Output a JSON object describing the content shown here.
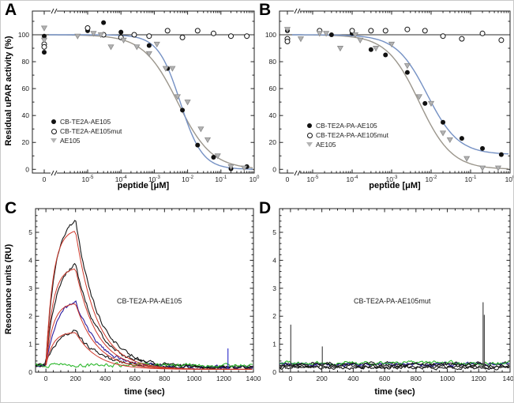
{
  "figure": {
    "background": "#ffffff",
    "border_color": "#c9c9c9",
    "axis_color": "#222222"
  },
  "chart_data": [
    {
      "id": "A",
      "type": "scatter",
      "panel_kind": "dose-response",
      "xlabel": "peptide [μM]",
      "ylabel": "Residual uPAR activity (%)",
      "x_scale": "log10 with zero point and axis break",
      "x_ticks": [
        "0",
        "10^-5",
        "10^-4",
        "10^-3",
        "10^-2",
        "10^-1",
        "10^0"
      ],
      "y_ticks": [
        0,
        20,
        40,
        60,
        80,
        100
      ],
      "ylim": [
        -3,
        118
      ],
      "grid": false,
      "legend_position": "lower-left-inside",
      "legend": [
        {
          "label": "CB-TE2A-AE105",
          "marker": "filled-circle",
          "color": "#111111"
        },
        {
          "label": "CB-TE2A-AE105mut",
          "marker": "open-circle",
          "color": "#111111"
        },
        {
          "label": "AE105",
          "marker": "filled-triangle-down",
          "color": "#b3b3b3"
        }
      ],
      "series": [
        {
          "name": "CB-TE2A-AE105",
          "marker": "filled-circle",
          "color": "#111111",
          "points": [
            [
              0,
              99
            ],
            [
              0,
              87
            ],
            [
              1e-05,
              103
            ],
            [
              3e-05,
              109
            ],
            [
              0.0001,
              102
            ],
            [
              0.0007,
              92
            ],
            [
              0.0025,
              75
            ],
            [
              0.007,
              44
            ],
            [
              0.02,
              18
            ],
            [
              0.06,
              9
            ],
            [
              0.2,
              0.5
            ],
            [
              0.6,
              2
            ]
          ]
        },
        {
          "name": "CB-TE2A-AE105mut",
          "marker": "open-circle",
          "color": "#111111",
          "points": [
            [
              0,
              93
            ],
            [
              0,
              91
            ],
            [
              1e-05,
              105
            ],
            [
              3e-05,
              100
            ],
            [
              0.0001,
              98
            ],
            [
              0.00025,
              100
            ],
            [
              0.0007,
              99
            ],
            [
              0.0025,
              103
            ],
            [
              0.007,
              98
            ],
            [
              0.02,
              103
            ],
            [
              0.06,
              101
            ],
            [
              0.2,
              99
            ],
            [
              0.6,
              99
            ]
          ]
        },
        {
          "name": "AE105",
          "marker": "filled-triangle-down",
          "color": "#b3b3b3",
          "points": [
            [
              0,
              105
            ],
            [
              0,
              96
            ],
            [
              5e-06,
              99
            ],
            [
              1.5e-05,
              101
            ],
            [
              2.5e-05,
              100
            ],
            [
              5e-05,
              91
            ],
            [
              0.00012,
              96
            ],
            [
              0.0003,
              91
            ],
            [
              0.0007,
              86
            ],
            [
              0.0012,
              93
            ],
            [
              0.0022,
              75
            ],
            [
              0.0035,
              75
            ],
            [
              0.005,
              54
            ],
            [
              0.01,
              50
            ],
            [
              0.025,
              30
            ],
            [
              0.04,
              22
            ],
            [
              0.08,
              10
            ],
            [
              0.2,
              2
            ],
            [
              0.5,
              1
            ]
          ]
        }
      ],
      "curves": [
        {
          "name": "mut-flat-fit",
          "model": "flat",
          "level": 100,
          "color": "#2b2b2b"
        },
        {
          "name": "AE105-hill-fit",
          "model": "hill",
          "top": 100,
          "bottom": 0,
          "ic50": 0.005,
          "hill": 0.85,
          "color": "#9b968c"
        },
        {
          "name": "CB-TE2A-AE105-hill-fit",
          "model": "hill",
          "top": 100,
          "bottom": 0,
          "ic50": 0.006,
          "hill": 1.3,
          "color": "#7591c4"
        }
      ]
    },
    {
      "id": "B",
      "type": "scatter",
      "panel_kind": "dose-response",
      "xlabel": "peptide [μM]",
      "ylabel": "",
      "x_scale": "log10 with zero point and axis break",
      "x_ticks": [
        "0",
        "10^-5",
        "10^-4",
        "10^-3",
        "10^-2",
        "10^-1",
        "10^0"
      ],
      "y_ticks": [
        0,
        20,
        40,
        60,
        80,
        100
      ],
      "ylim": [
        -3,
        118
      ],
      "grid": false,
      "legend_position": "lower-left-inside",
      "legend": [
        {
          "label": "CB-TE2A-PA-AE105",
          "marker": "filled-circle",
          "color": "#111111"
        },
        {
          "label": "CB-TE2A-PA-AE105mut",
          "marker": "open-circle",
          "color": "#111111"
        },
        {
          "label": "AE105",
          "marker": "filled-triangle-down",
          "color": "#b3b3b3"
        }
      ],
      "series": [
        {
          "name": "CB-TE2A-PA-AE105",
          "marker": "filled-circle",
          "color": "#111111",
          "points": [
            [
              0,
              103
            ],
            [
              0,
              97
            ],
            [
              3e-05,
              100
            ],
            [
              0.0001,
              101
            ],
            [
              0.0003,
              89
            ],
            [
              0.0007,
              85
            ],
            [
              0.0025,
              72
            ],
            [
              0.007,
              49
            ],
            [
              0.02,
              35
            ],
            [
              0.06,
              23
            ],
            [
              0.2,
              15.5
            ],
            [
              0.6,
              11
            ]
          ]
        },
        {
          "name": "CB-TE2A-PA-AE105mut",
          "marker": "open-circle",
          "color": "#111111",
          "points": [
            [
              0,
              97
            ],
            [
              0,
              95
            ],
            [
              1.5e-05,
              103
            ],
            [
              0.0001,
              103
            ],
            [
              0.0003,
              103
            ],
            [
              0.0007,
              103
            ],
            [
              0.0025,
              104
            ],
            [
              0.007,
              103
            ],
            [
              0.02,
              99
            ],
            [
              0.06,
              97
            ],
            [
              0.2,
              101
            ],
            [
              0.6,
              96
            ]
          ]
        },
        {
          "name": "AE105",
          "marker": "filled-triangle-down",
          "color": "#b3b3b3",
          "points": [
            [
              0,
              104
            ],
            [
              5e-06,
              97
            ],
            [
              1.5e-05,
              101
            ],
            [
              2.2e-05,
              101
            ],
            [
              5e-05,
              90
            ],
            [
              0.00012,
              100
            ],
            [
              0.00016,
              96
            ],
            [
              0.0004,
              90
            ],
            [
              0.001,
              93
            ],
            [
              0.0025,
              77
            ],
            [
              0.005,
              54
            ],
            [
              0.01,
              49
            ],
            [
              0.02,
              27
            ],
            [
              0.03,
              22
            ],
            [
              0.08,
              8
            ],
            [
              0.2,
              1
            ],
            [
              0.5,
              1
            ]
          ]
        }
      ],
      "curves": [
        {
          "name": "mut-flat-fit",
          "model": "flat",
          "level": 100,
          "color": "#2b2b2b"
        },
        {
          "name": "AE105-hill-fit",
          "model": "hill",
          "top": 100,
          "bottom": 0,
          "ic50": 0.005,
          "hill": 1.05,
          "color": "#9b968c"
        },
        {
          "name": "CB-TE2A-PA-AE105-hill-fit",
          "model": "hill",
          "top": 100,
          "bottom": 11,
          "ic50": 0.008,
          "hill": 1.1,
          "color": "#7591c4"
        }
      ]
    },
    {
      "id": "C",
      "type": "line",
      "panel_kind": "SPR-sensorgram",
      "xlabel": "time (sec)",
      "ylabel": "Resonance units (RU)",
      "annotation": "CB-TE2A-PA-AE105",
      "x_ticks": [
        0,
        200,
        400,
        600,
        800,
        1000,
        1200,
        1400
      ],
      "y_ticks": [
        0,
        1,
        2,
        3,
        4,
        5
      ],
      "xlim": [
        -70,
        1400
      ],
      "ylim": [
        0,
        5.85
      ],
      "grid": false,
      "association_start_sec": 0,
      "dissociation_start_sec": 200,
      "baseline": 0.25,
      "fit_color": "#cf392b",
      "traces": [
        {
          "name": "concentration-1",
          "color": "#161616",
          "peak": 5.4,
          "fit_peak": 5.05,
          "tau_a": 62
        },
        {
          "name": "concentration-2",
          "color": "#161616",
          "peak": 3.85,
          "fit_peak": 3.7,
          "tau_a": 68
        },
        {
          "name": "concentration-3",
          "color": "#2a1c9e",
          "peak": 2.52,
          "fit_peak": 2.45,
          "tau_a": 74
        },
        {
          "name": "concentration-4",
          "color": "#161616",
          "peak": 1.5,
          "fit_peak": 1.42,
          "tau_a": 80
        },
        {
          "name": "reference-blank",
          "color": "#2db82d",
          "peak": 0,
          "base": 0.25
        }
      ],
      "spikes": [
        {
          "t": 1228,
          "v": 0.85,
          "color": "#3a3acc"
        }
      ]
    },
    {
      "id": "D",
      "type": "line",
      "panel_kind": "SPR-sensorgram",
      "xlabel": "time (sec)",
      "ylabel": "",
      "annotation": "CB-TE2A-PA-AE105mut",
      "x_ticks": [
        0,
        200,
        400,
        600,
        800,
        1000,
        1200,
        1400
      ],
      "y_ticks": [
        0,
        1,
        2,
        3,
        4,
        5
      ],
      "xlim": [
        -70,
        1400
      ],
      "ylim": [
        0,
        5.85
      ],
      "grid": false,
      "baseline": 0.28,
      "traces": [
        {
          "name": "flat-1",
          "color": "#161616",
          "base": 0.2
        },
        {
          "name": "flat-2",
          "color": "#161616",
          "base": 0.3
        },
        {
          "name": "flat-3",
          "color": "#2a1c9e",
          "base": 0.3
        },
        {
          "name": "flat-4",
          "color": "#2db82d",
          "base": 0.33
        },
        {
          "name": "flat-5",
          "color": "#161616",
          "base": 0.26
        },
        {
          "name": "flat-6",
          "color": "#161616",
          "base": 0.17
        }
      ],
      "spikes": [
        {
          "t": 2,
          "v": 1.7
        },
        {
          "t": 203,
          "v": 0.92
        },
        {
          "t": 1228,
          "v": 2.5
        },
        {
          "t": 1236,
          "v": 2.05
        }
      ]
    }
  ]
}
